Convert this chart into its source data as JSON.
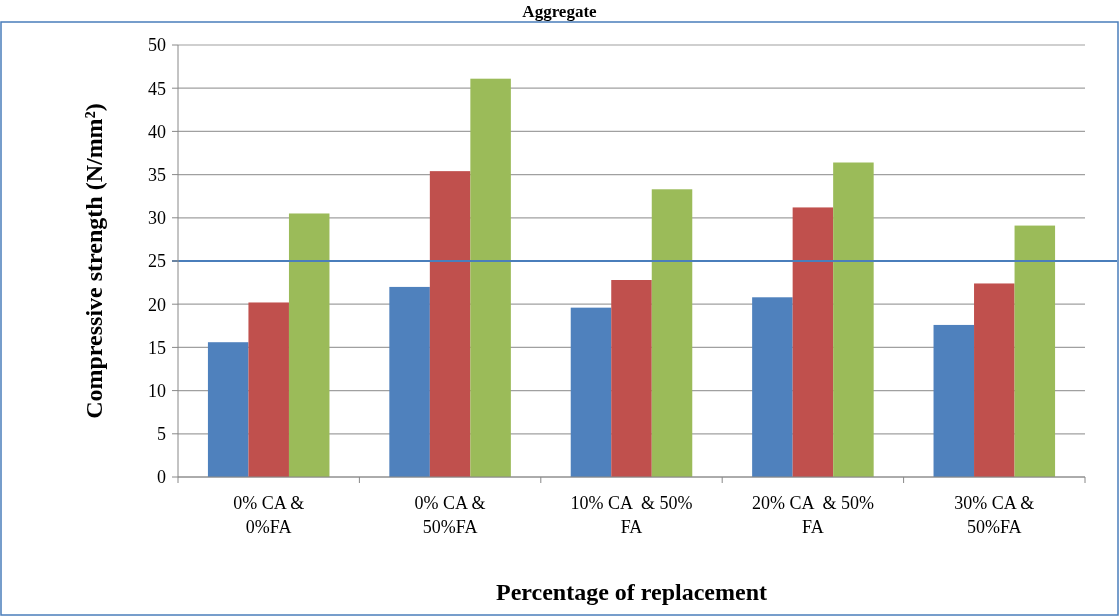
{
  "chart_data": {
    "type": "bar",
    "title": "Aggregate",
    "xlabel": "Percentage of replacement",
    "ylabel": "Compressive strength (N/mm²)",
    "categories": [
      "0% CA &\n0%FA",
      "0% CA &\n50%FA",
      "10% CA  & 50%\nFA",
      "20% CA  & 50%\nFA",
      "30% CA &\n50%FA"
    ],
    "series": [
      {
        "color": "#4f81bd",
        "values": [
          15.6,
          22.0,
          19.6,
          20.8,
          17.6
        ]
      },
      {
        "color": "#c0504d",
        "values": [
          20.2,
          35.4,
          22.8,
          31.2,
          22.4
        ]
      },
      {
        "color": "#9bbb59",
        "values": [
          30.5,
          46.1,
          33.3,
          36.4,
          29.1
        ]
      }
    ],
    "ylim": [
      0,
      50
    ],
    "yticks": [
      0,
      5,
      10,
      15,
      20,
      25,
      30,
      35,
      40,
      45,
      50
    ],
    "grid": "y",
    "ref_lines": [
      {
        "axis": "y",
        "value": 25,
        "color": "#4a7ebb"
      }
    ]
  }
}
